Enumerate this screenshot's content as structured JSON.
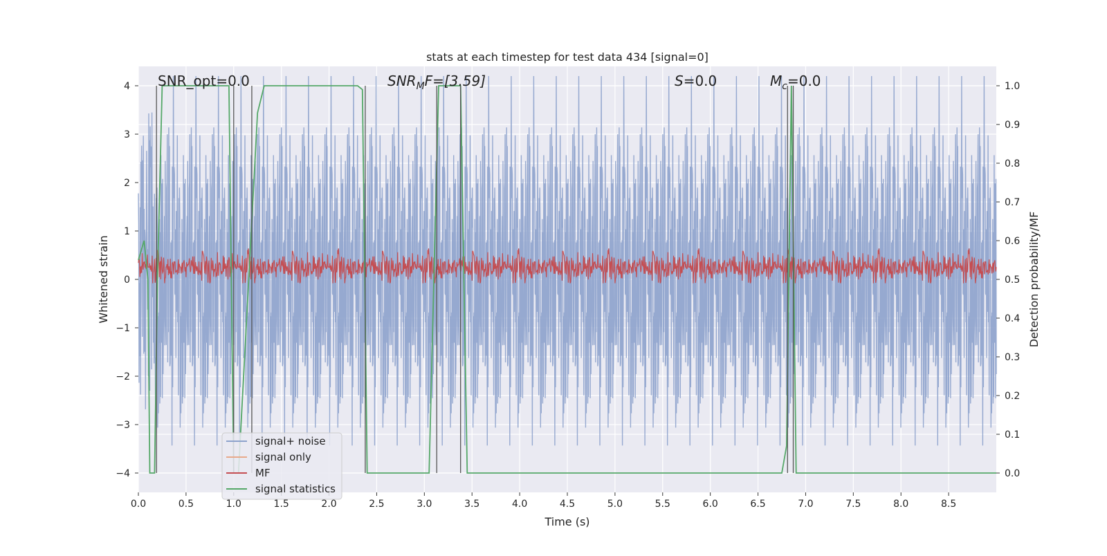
{
  "chart_data": {
    "type": "line",
    "title": "stats at each timestep for test data 434 [signal=0]",
    "xlabel": "Time (s)",
    "ylabel_left": "Whitened strain",
    "ylabel_right": "Detection probability/MF",
    "xlim": [
      0.0,
      9.0
    ],
    "ylim_left": [
      -4.4,
      4.4
    ],
    "ylim_right": [
      -0.05,
      1.05
    ],
    "x_ticks": [
      "0.0",
      "0.5",
      "1.0",
      "1.5",
      "2.0",
      "2.5",
      "3.0",
      "3.5",
      "4.0",
      "4.5",
      "5.0",
      "5.5",
      "6.0",
      "6.5",
      "7.0",
      "7.5",
      "8.0",
      "8.5"
    ],
    "y_ticks_left": [
      "4",
      "3",
      "2",
      "1",
      "0",
      "−1",
      "−2",
      "−3",
      "−4"
    ],
    "y_ticks_right": [
      "1.0",
      "0.9",
      "0.8",
      "0.7",
      "0.6",
      "0.5",
      "0.4",
      "0.3",
      "0.2",
      "0.1",
      "0.0"
    ],
    "grid": true,
    "legend_position": "lower-left",
    "annotations": {
      "snr_opt": "SNR_opt=0.0",
      "snr_mf_main": "SNR",
      "snr_mf_sub": "M",
      "snr_mf_rest": "F=[3.59]",
      "s_main": "S",
      "s_rest": "=0.0",
      "mc_main": "M",
      "mc_sub": "c",
      "mc_rest": "=0.0"
    },
    "series": [
      {
        "name": "signal+ noise",
        "color": "#8da2cc",
        "axis": "left",
        "kind": "noise",
        "amplitude": 2.0
      },
      {
        "name": "signal only",
        "color": "#e8a98a",
        "axis": "left",
        "kind": "flat",
        "values": []
      },
      {
        "name": "MF",
        "color": "#c44e52",
        "axis": "right",
        "kind": "noise",
        "mean": 0.53,
        "amplitude": 0.03
      },
      {
        "name": "signal statistics",
        "color": "#55a868",
        "axis": "right",
        "x": [
          0.0,
          0.06,
          0.1,
          0.12,
          0.17,
          0.2,
          0.25,
          0.28,
          0.35,
          0.95,
          1.0,
          1.05,
          1.25,
          1.32,
          1.4,
          2.3,
          2.35,
          2.4,
          2.55,
          3.05,
          3.15,
          3.2,
          3.3,
          3.38,
          3.45,
          3.65,
          6.75,
          6.8,
          6.85,
          6.9,
          7.0,
          9.0
        ],
        "values": [
          0.55,
          0.6,
          0.5,
          0.0,
          0.0,
          0.5,
          1.0,
          1.0,
          1.0,
          1.0,
          0.0,
          0.0,
          0.93,
          1.0,
          1.0,
          1.0,
          0.99,
          0.0,
          0.0,
          0.0,
          1.0,
          1.0,
          1.0,
          1.0,
          0.0,
          0.0,
          0.0,
          0.07,
          1.0,
          0.0,
          0.0,
          0.0
        ]
      }
    ],
    "vertical_markers_x": [
      0.19,
      1.0,
      1.19,
      2.38,
      3.13,
      3.38,
      6.81,
      6.87
    ]
  }
}
